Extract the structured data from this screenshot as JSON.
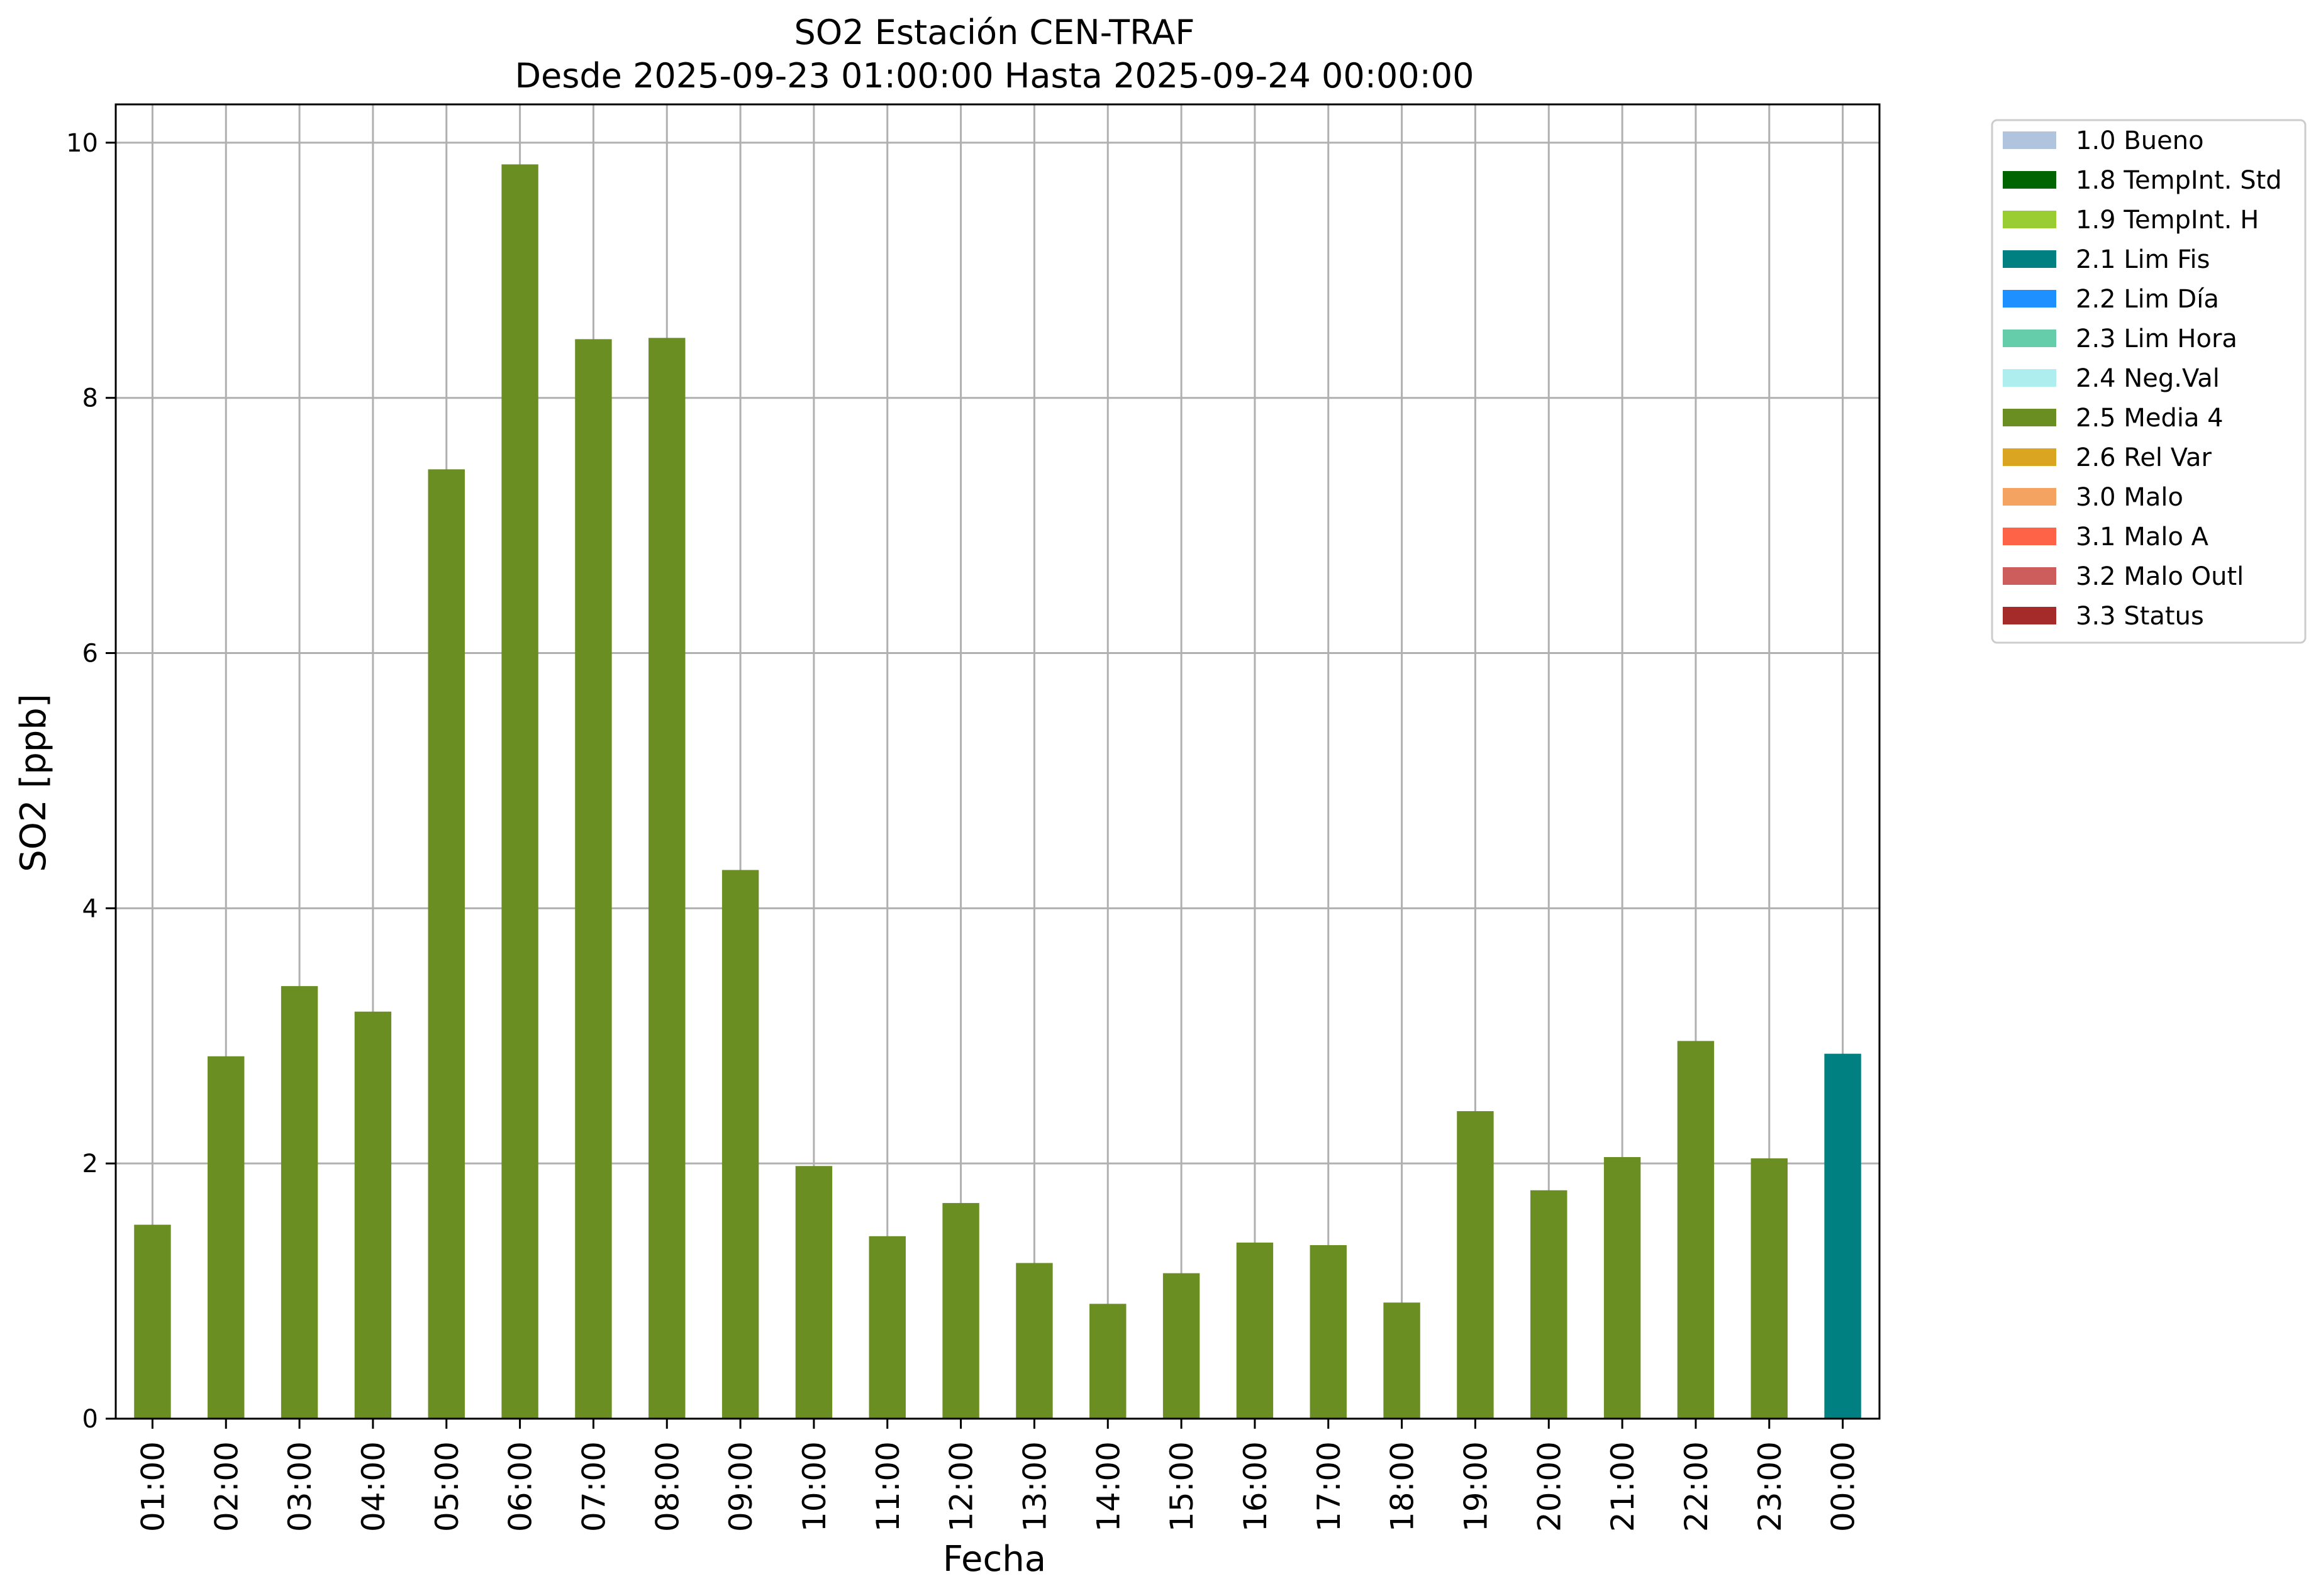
{
  "chart_data": {
    "type": "bar",
    "title": "SO2 Estación CEN-TRAF",
    "subtitle": "Desde 2025-09-23 01:00:00 Hasta 2025-09-24 00:00:00",
    "xlabel": "Fecha",
    "ylabel": "SO2 [ppb]",
    "ylim": [
      0,
      10.3
    ],
    "yticks": [
      0,
      2,
      4,
      6,
      8,
      10
    ],
    "grid": true,
    "legend_position": "outside-top-right",
    "categories": [
      "01:00",
      "02:00",
      "03:00",
      "04:00",
      "05:00",
      "06:00",
      "07:00",
      "08:00",
      "09:00",
      "10:00",
      "11:00",
      "12:00",
      "13:00",
      "14:00",
      "15:00",
      "16:00",
      "17:00",
      "18:00",
      "19:00",
      "20:00",
      "21:00",
      "22:00",
      "23:00",
      "00:00"
    ],
    "values": [
      1.52,
      2.84,
      3.39,
      3.19,
      7.44,
      9.83,
      8.46,
      8.47,
      4.3,
      1.98,
      1.43,
      1.69,
      1.22,
      0.9,
      1.14,
      1.38,
      1.36,
      0.91,
      2.41,
      1.79,
      2.05,
      2.96,
      2.04,
      2.86
    ],
    "flags": [
      "2.5",
      "2.5",
      "2.5",
      "2.5",
      "2.5",
      "2.5",
      "2.5",
      "2.5",
      "2.5",
      "2.5",
      "2.5",
      "2.5",
      "2.5",
      "2.5",
      "2.5",
      "2.5",
      "2.5",
      "2.5",
      "2.5",
      "2.5",
      "2.5",
      "2.5",
      "2.5",
      "2.1"
    ],
    "legend": [
      {
        "code": "1.0",
        "label": "1.0 Bueno",
        "color": "#b0c4de"
      },
      {
        "code": "1.8",
        "label": "1.8 TempInt. Std",
        "color": "#006400"
      },
      {
        "code": "1.9",
        "label": "1.9 TempInt. H",
        "color": "#9acd32"
      },
      {
        "code": "2.1",
        "label": "2.1 Lim Fis",
        "color": "#008080"
      },
      {
        "code": "2.2",
        "label": "2.2 Lim Día",
        "color": "#1e90ff"
      },
      {
        "code": "2.3",
        "label": "2.3 Lim Hora",
        "color": "#66cdaa"
      },
      {
        "code": "2.4",
        "label": "2.4 Neg.Val",
        "color": "#afeeee"
      },
      {
        "code": "2.5",
        "label": "2.5 Media 4",
        "color": "#6b8e23"
      },
      {
        "code": "2.6",
        "label": "2.6 Rel Var",
        "color": "#daa520"
      },
      {
        "code": "3.0",
        "label": "3.0 Malo",
        "color": "#f4a460"
      },
      {
        "code": "3.1",
        "label": "3.1 Malo A",
        "color": "#ff6347"
      },
      {
        "code": "3.2",
        "label": "3.2 Malo Outl",
        "color": "#cd5c5c"
      },
      {
        "code": "3.3",
        "label": "3.3 Status",
        "color": "#a52a2a"
      }
    ]
  }
}
